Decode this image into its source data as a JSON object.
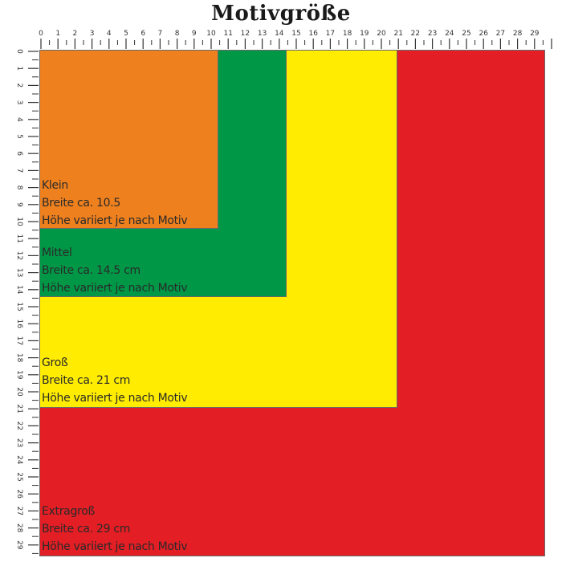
{
  "title": "Motivgröße",
  "colors": {
    "klein": "#ee801e",
    "mittel": "#009846",
    "gross": "#ffec00",
    "extragross": "#e31e24"
  },
  "top_ruler": {
    "labels": [
      0,
      1,
      2,
      3,
      4,
      5,
      6,
      7,
      8,
      9,
      10,
      11,
      12,
      13,
      14,
      15,
      16,
      17,
      18,
      19,
      20,
      21,
      22,
      23,
      24,
      25,
      26,
      27,
      28,
      29
    ]
  },
  "left_ruler": {
    "labels": [
      0,
      1,
      2,
      3,
      4,
      5,
      6,
      7,
      8,
      9,
      10,
      11,
      12,
      13,
      14,
      15,
      16,
      17,
      18,
      19,
      20,
      21,
      22,
      23,
      24,
      25,
      26,
      27,
      28,
      29
    ]
  },
  "sizes": [
    {
      "name": "Klein",
      "width_cm": 10.5,
      "line1": "Klein",
      "line2": "Breite ca. 10.5",
      "line3": "Höhe variiert je nach Motiv"
    },
    {
      "name": "Mittel",
      "width_cm": 14.5,
      "line1": "Mittel",
      "line2": "Breite ca. 14.5 cm",
      "line3": "Höhe variiert je nach Motiv"
    },
    {
      "name": "Groß",
      "width_cm": 21,
      "line1": "Groß",
      "line2": "Breite ca. 21 cm",
      "line3": "Höhe variiert je nach Motiv"
    },
    {
      "name": "Extragroß",
      "width_cm": 29,
      "line1": "Extragroß",
      "line2": "Breite ca. 29 cm",
      "line3": "Höhe variiert je nach Motiv"
    }
  ]
}
